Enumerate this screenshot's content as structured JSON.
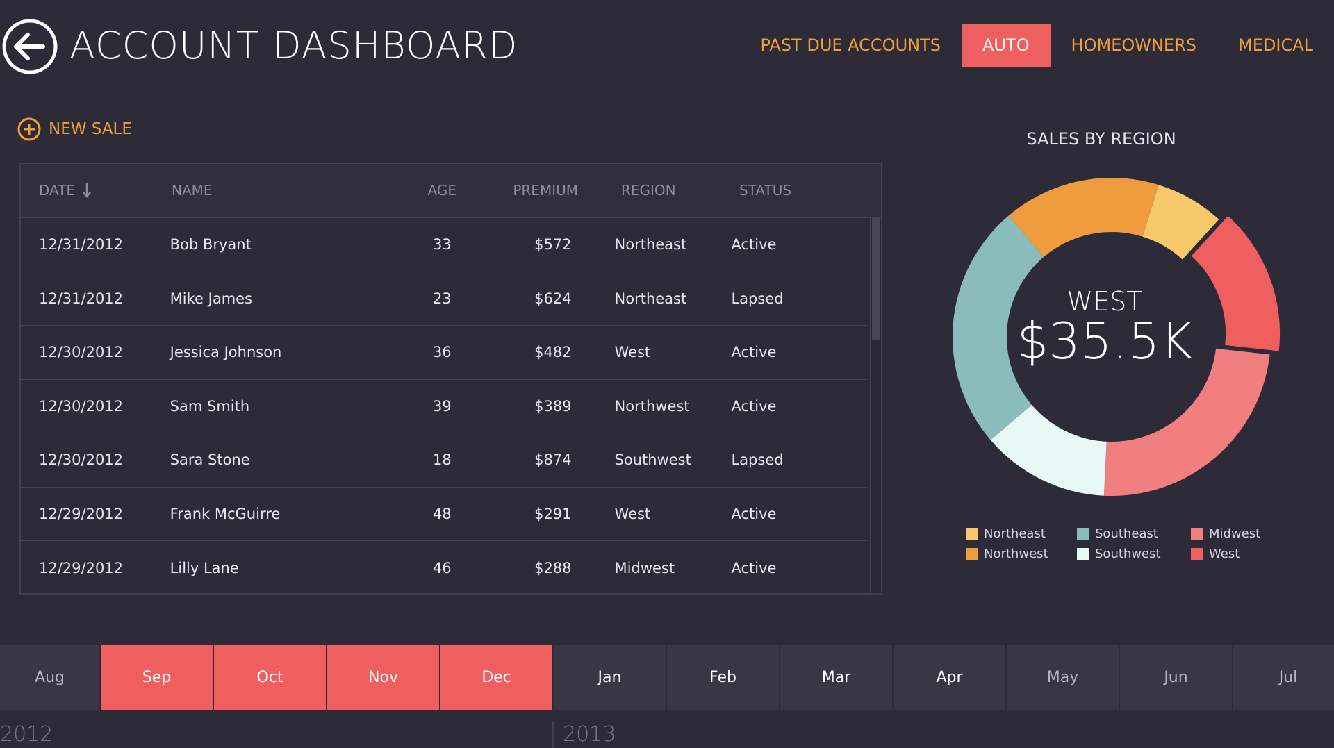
{
  "header": {
    "title": "ACCOUNT DASHBOARD",
    "tabs": [
      {
        "label": "PAST DUE ACCOUNTS",
        "active": false
      },
      {
        "label": "AUTO",
        "active": true
      },
      {
        "label": "HOMEOWNERS",
        "active": false
      },
      {
        "label": "MEDICAL",
        "active": false
      }
    ]
  },
  "actions": {
    "new_sale_label": "NEW SALE"
  },
  "table": {
    "columns": [
      "DATE",
      "NAME",
      "AGE",
      "PREMIUM",
      "REGION",
      "STATUS"
    ],
    "sorted_column": "DATE",
    "sort_direction": "descending",
    "rows": [
      {
        "date": "12/31/2012",
        "name": "Bob Bryant",
        "age": "33",
        "premium": "$572",
        "region": "Northeast",
        "status": "Active"
      },
      {
        "date": "12/31/2012",
        "name": "Mike James",
        "age": "23",
        "premium": "$624",
        "region": "Northeast",
        "status": "Lapsed"
      },
      {
        "date": "12/30/2012",
        "name": "Jessica Johnson",
        "age": "36",
        "premium": "$482",
        "region": "West",
        "status": "Active"
      },
      {
        "date": "12/30/2012",
        "name": "Sam Smith",
        "age": "39",
        "premium": "$389",
        "region": "Northwest",
        "status": "Active"
      },
      {
        "date": "12/30/2012",
        "name": "Sara Stone",
        "age": "18",
        "premium": "$874",
        "region": "Southwest",
        "status": "Lapsed"
      },
      {
        "date": "12/29/2012",
        "name": "Frank McGuirre",
        "age": "48",
        "premium": "$291",
        "region": "West",
        "status": "Active"
      },
      {
        "date": "12/29/2012",
        "name": "Lilly Lane",
        "age": "46",
        "premium": "$288",
        "region": "Midwest",
        "status": "Active"
      }
    ]
  },
  "sales_panel": {
    "title": "SALES BY REGION",
    "center_label": "WEST",
    "center_value": "$35.5K",
    "legend": [
      {
        "label": "Northeast",
        "color": "#f8c96a"
      },
      {
        "label": "Southeast",
        "color": "#8bbcbc"
      },
      {
        "label": "Midwest",
        "color": "#f27f7f"
      },
      {
        "label": "Northwest",
        "color": "#ee9c3e"
      },
      {
        "label": "Southwest",
        "color": "#e8f8f4"
      },
      {
        "label": "West",
        "color": "#ef5f5f"
      }
    ]
  },
  "chart_data": {
    "type": "pie",
    "title": "SALES BY REGION",
    "donut": true,
    "highlighted": "West",
    "categories": [
      "Northeast",
      "West",
      "Midwest",
      "Southwest",
      "Southeast",
      "Northwest"
    ],
    "values": [
      7,
      15,
      24,
      13,
      25,
      16
    ],
    "colors": [
      "#f8c96a",
      "#ef5f5f",
      "#f27f7f",
      "#e8f8f4",
      "#8bbcbc",
      "#ee9c3e"
    ]
  },
  "timeline": {
    "months": [
      {
        "label": "Aug",
        "selected": false,
        "year": "2012"
      },
      {
        "label": "Sep",
        "selected": true,
        "year": "2012"
      },
      {
        "label": "Oct",
        "selected": true,
        "year": "2012"
      },
      {
        "label": "Nov",
        "selected": true,
        "year": "2012"
      },
      {
        "label": "Dec",
        "selected": true,
        "year": "2012"
      },
      {
        "label": "Jan",
        "selected": false,
        "year": "2013"
      },
      {
        "label": "Feb",
        "selected": false,
        "year": "2013"
      },
      {
        "label": "Mar",
        "selected": false,
        "year": "2013"
      },
      {
        "label": "Apr",
        "selected": false,
        "year": "2013"
      },
      {
        "label": "May",
        "selected": false,
        "year": "2013"
      },
      {
        "label": "Jun",
        "selected": false,
        "year": "2013"
      },
      {
        "label": "Jul",
        "selected": false,
        "year": "2013"
      }
    ],
    "years": [
      "2012",
      "2013"
    ]
  },
  "colors": {
    "background": "#2e2b38",
    "accent": "#ef5f5f",
    "orange": "#f0a03a"
  }
}
